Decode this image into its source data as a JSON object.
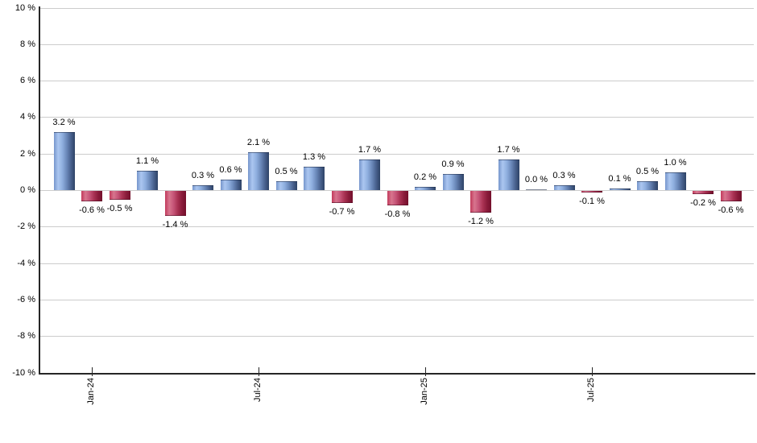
{
  "chart_data": {
    "type": "bar",
    "title": "",
    "unit": "%",
    "ylim": [
      -10,
      10
    ],
    "grid": true,
    "values": [
      3.2,
      -0.6,
      -0.5,
      1.1,
      -1.4,
      0.3,
      0.6,
      2.1,
      0.5,
      1.3,
      -0.7,
      1.7,
      -0.8,
      0.2,
      0.9,
      -1.2,
      1.7,
      0.0,
      0.3,
      -0.1,
      0.1,
      0.5,
      1.0,
      -0.2,
      -0.6
    ],
    "bar_labels": [
      "3.2 %",
      "-0.6 %",
      "-0.5 %",
      "1.1 %",
      "-1.4 %",
      "0.3 %",
      "0.6 %",
      "2.1 %",
      "0.5 %",
      "1.3 %",
      "-0.7 %",
      "1.7 %",
      "-0.8 %",
      "0.2 %",
      "0.9 %",
      "-1.2 %",
      "1.7 %",
      "0.0 %",
      "0.3 %",
      "-0.1 %",
      "0.1 %",
      "0.5 %",
      "1.0 %",
      "-0.2 %",
      "-0.6 %"
    ],
    "x_ticks": [
      {
        "label": "Jan-24",
        "bar_index": 1
      },
      {
        "label": "Jul-24",
        "bar_index": 7
      },
      {
        "label": "Jan-25",
        "bar_index": 13
      },
      {
        "label": "Jul-25",
        "bar_index": 19
      }
    ],
    "y_ticks": [
      {
        "label": "10 %",
        "value": 10
      },
      {
        "label": "8 %",
        "value": 8
      },
      {
        "label": "6 %",
        "value": 6
      },
      {
        "label": "4 %",
        "value": 4
      },
      {
        "label": "2 %",
        "value": 2
      },
      {
        "label": "0 %",
        "value": 0
      },
      {
        "label": "-2 %",
        "value": -2
      },
      {
        "label": "-4 %",
        "value": -4
      },
      {
        "label": "-6 %",
        "value": -6
      },
      {
        "label": "-8 %",
        "value": -8
      },
      {
        "label": "-10 %",
        "value": -10
      }
    ],
    "colors": {
      "background": "#ffffff",
      "grid": "#cccccc",
      "axis": "#262626",
      "label": "#000000",
      "positive_gradient": [
        [
          "0%",
          "#7696cc"
        ],
        [
          "20%",
          "#abc6f0"
        ],
        [
          "40%",
          "#8fafdf"
        ],
        [
          "60%",
          "#6c8abb"
        ],
        [
          "80%",
          "#4a6390"
        ],
        [
          "100%",
          "#2d4266"
        ]
      ],
      "negative_gradient": [
        [
          "0%",
          "#c23a5c"
        ],
        [
          "20%",
          "#d7758e"
        ],
        [
          "40%",
          "#c65578"
        ],
        [
          "60%",
          "#a93253"
        ],
        [
          "80%",
          "#8a1c3b"
        ],
        [
          "100%",
          "#740f2b"
        ]
      ]
    }
  }
}
